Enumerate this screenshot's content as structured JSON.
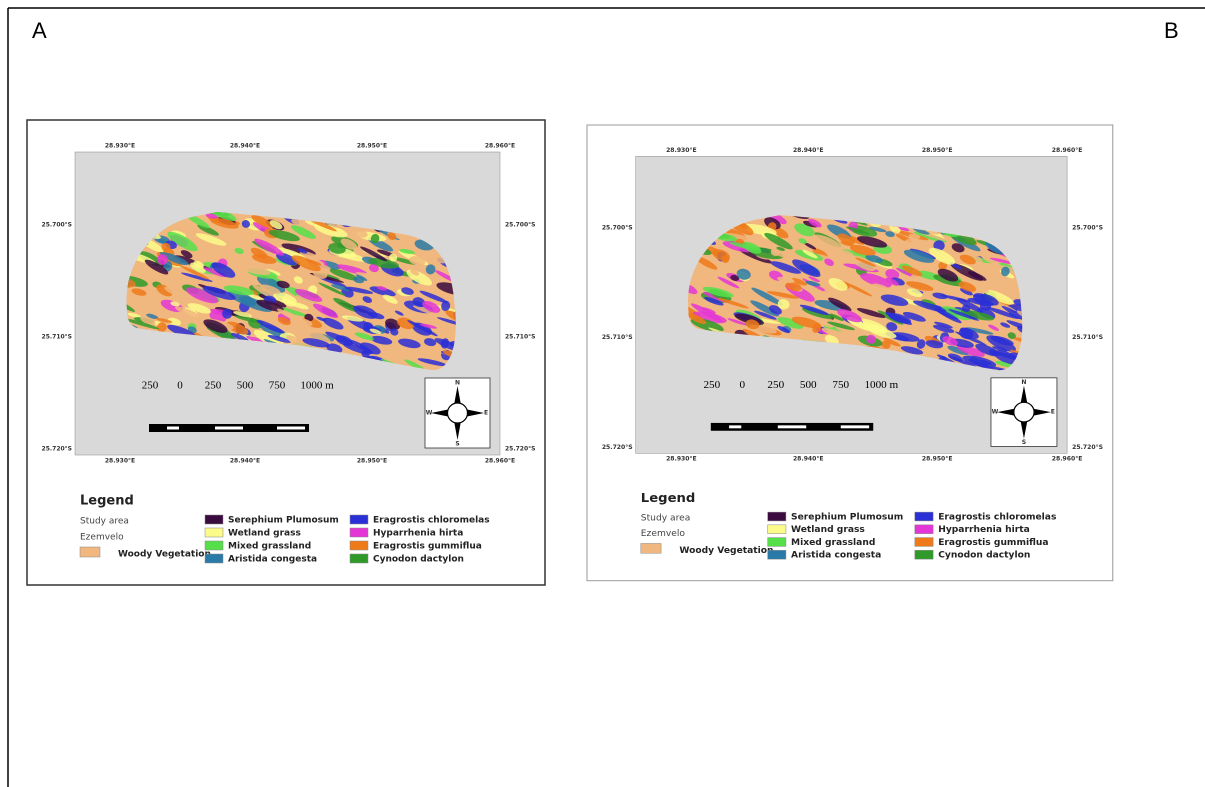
{
  "panels": [
    {
      "label": "A",
      "top_ticks": [
        "28.930°E",
        "28.940°E",
        "28.950°E",
        "28.960°E"
      ],
      "side_ticks": [
        "25.700°S",
        "25.710°S",
        "25.720°S"
      ],
      "scale_labels": [
        "250",
        "0",
        "250",
        "500",
        "750",
        "1000 m"
      ],
      "compass": [
        "N",
        "S",
        "W",
        "E"
      ],
      "legend": {
        "title": "Legend",
        "study_area": "Study area",
        "reserve": "Ezemvelo",
        "woody": {
          "name": "Woody Vegetation",
          "color": "#f0b77e"
        },
        "classes": [
          {
            "name": "Serephium Plumosum",
            "color": "#3b0a3f"
          },
          {
            "name": "Wetland grass",
            "color": "#fbfb8a"
          },
          {
            "name": "Mixed grassland",
            "color": "#55e04a"
          },
          {
            "name": "Aristida congesta",
            "color": "#2a7aa8"
          },
          {
            "name": "Eragrostis chloromelas",
            "color": "#2a2fd6"
          },
          {
            "name": "Hyparrhenia hirta",
            "color": "#e436d6"
          },
          {
            "name": "Eragrostis gummiflua",
            "color": "#ef7a1a"
          },
          {
            "name": "Cynodon dactylon",
            "color": "#2f9a2a"
          }
        ]
      }
    },
    {
      "label": "B",
      "top_ticks": [
        "28.930°E",
        "28.940°E",
        "28.950°E",
        "28.960°E"
      ],
      "side_ticks": [
        "25.700°S",
        "25.710°S",
        "25.720°S"
      ],
      "scale_labels": [
        "250",
        "0",
        "250",
        "500",
        "750",
        "1000 m"
      ],
      "compass": [
        "N",
        "S",
        "W",
        "E"
      ],
      "legend": {
        "title": "Legend",
        "study_area": "Study area",
        "reserve": "Ezemvelo",
        "woody": {
          "name": "Woody Vegetation",
          "color": "#f0b77e"
        },
        "classes": [
          {
            "name": "Serephium Plumosum",
            "color": "#3b0a3f"
          },
          {
            "name": "Wetland grass",
            "color": "#fbfb8a"
          },
          {
            "name": "Mixed grassland",
            "color": "#55e04a"
          },
          {
            "name": "Aristida congesta",
            "color": "#2a7aa8"
          },
          {
            "name": "Eragrostis chloromelas",
            "color": "#2a2fd6"
          },
          {
            "name": "Hyparrhenia hirta",
            "color": "#e436d6"
          },
          {
            "name": "Eragrostis gummiflua",
            "color": "#ef7a1a"
          },
          {
            "name": "Cynodon dactylon",
            "color": "#2f9a2a"
          }
        ]
      }
    }
  ]
}
